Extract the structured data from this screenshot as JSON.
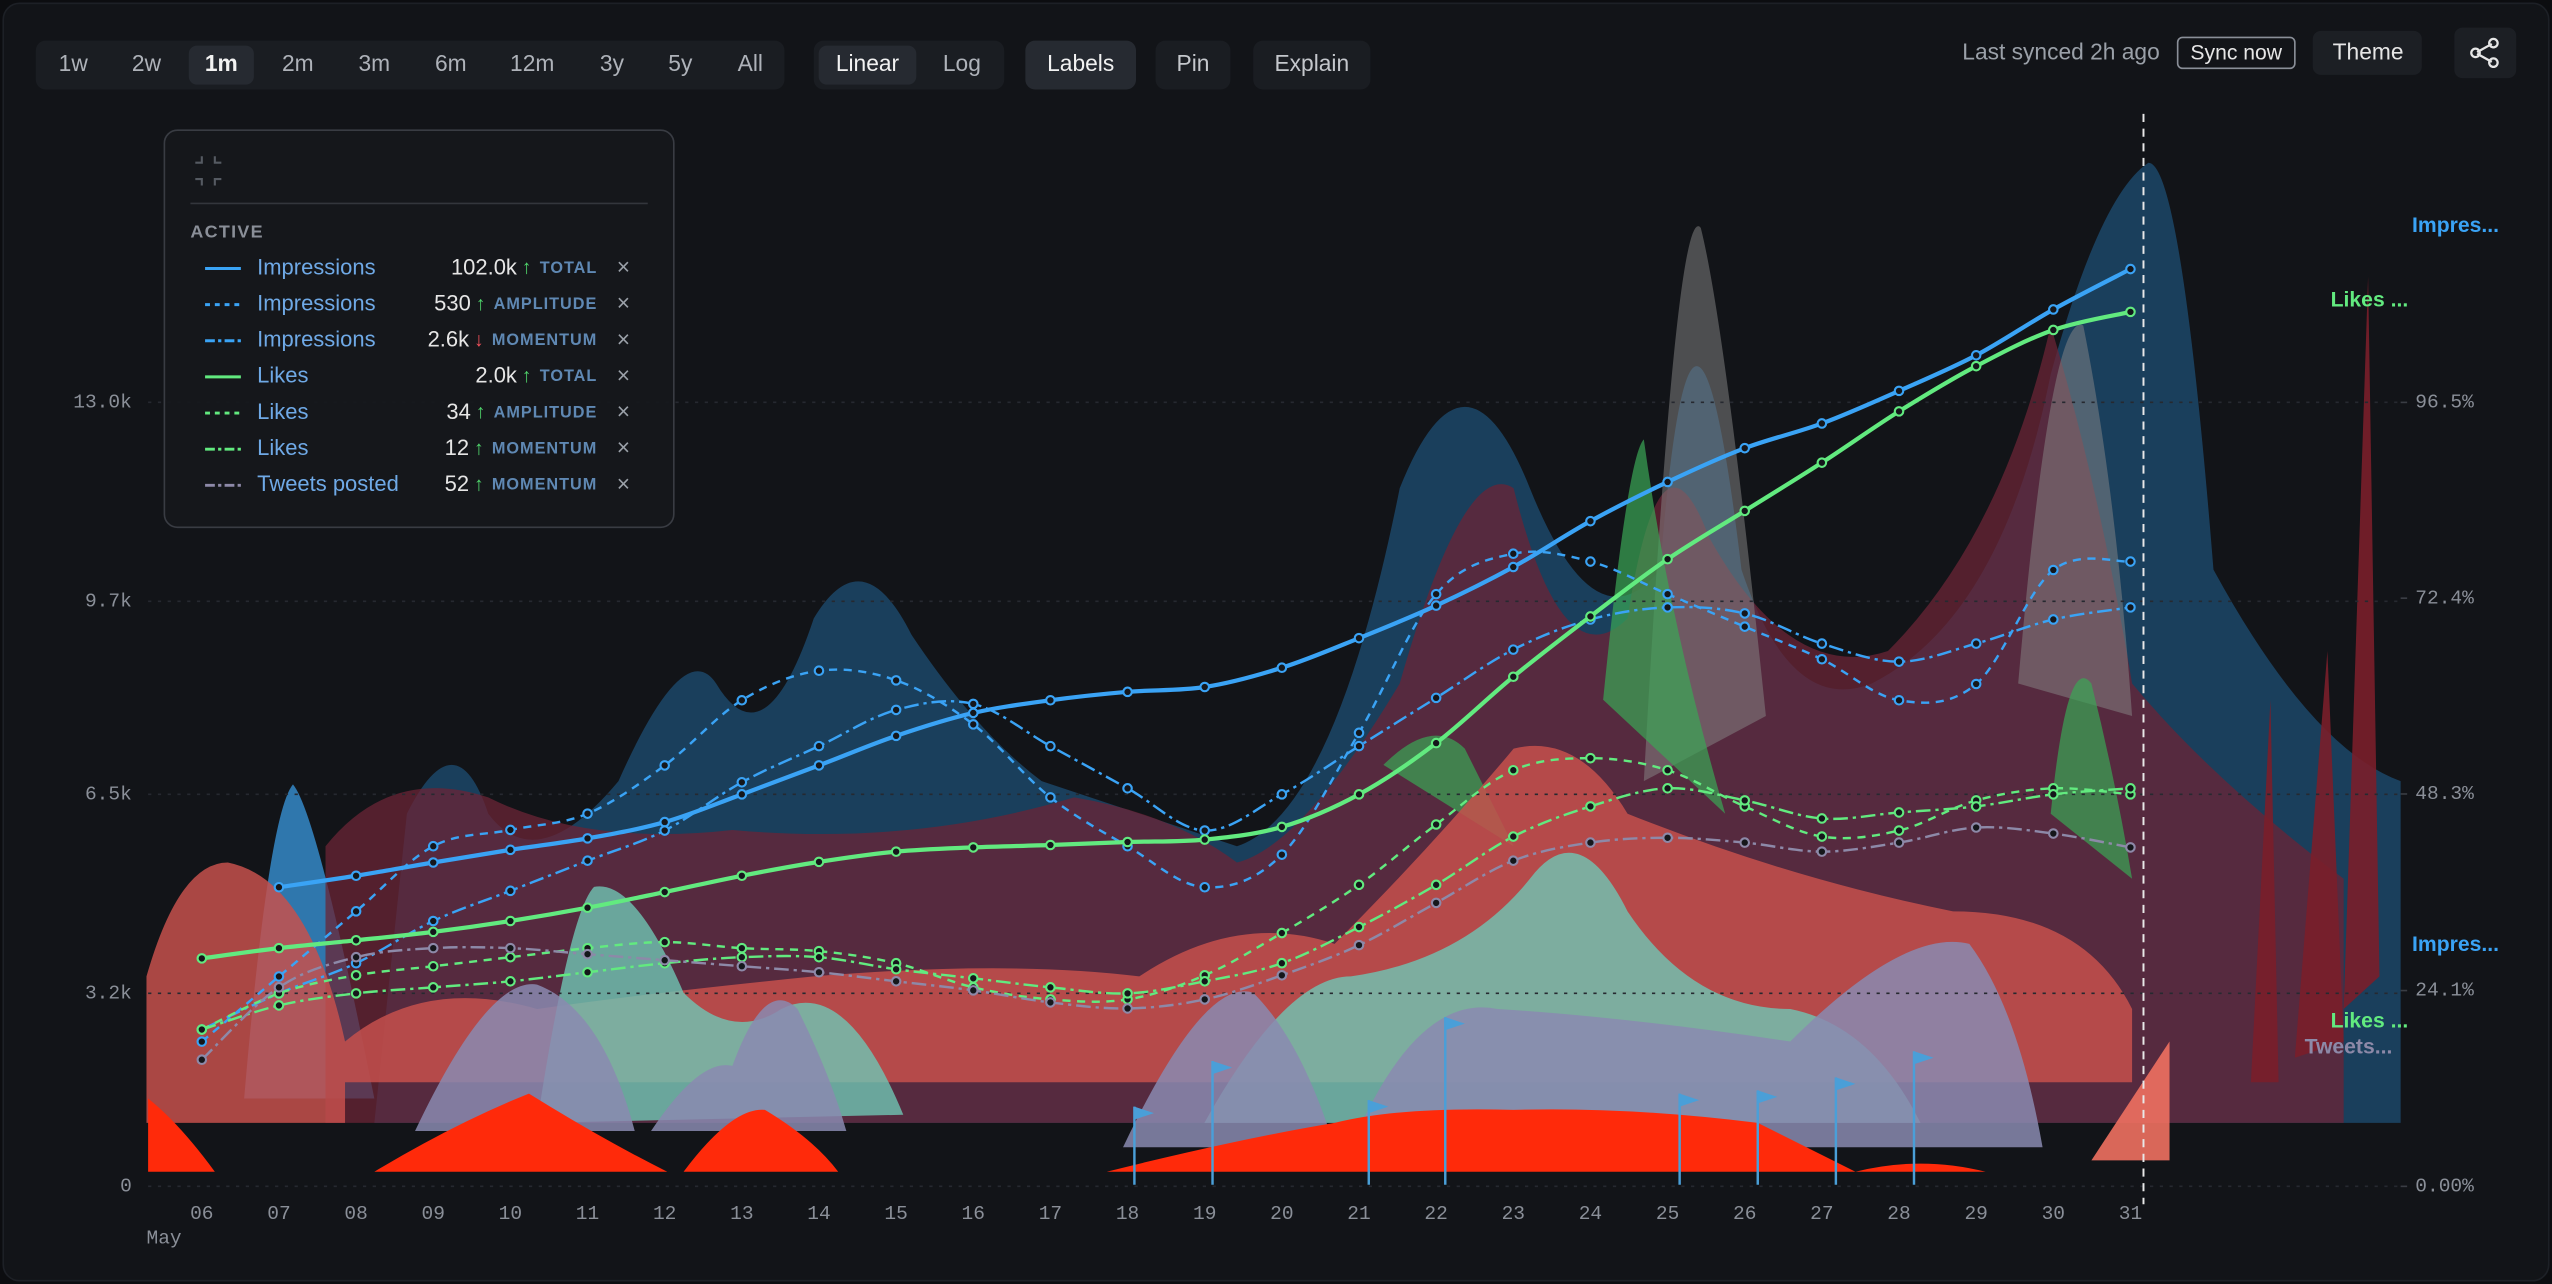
{
  "toolbar": {
    "ranges": [
      "1w",
      "2w",
      "1m",
      "2m",
      "3m",
      "6m",
      "12m",
      "3y",
      "5y",
      "All"
    ],
    "active_range": "1m",
    "scales": [
      "Linear",
      "Log"
    ],
    "active_scale": "Linear",
    "buttons": [
      "Labels",
      "Pin",
      "Explain"
    ],
    "active_button": "Labels",
    "status": "Last synced 2h ago",
    "sync": "Sync now",
    "theme": "Theme"
  },
  "legend": {
    "heading": "ACTIVE",
    "remove": "×"
  },
  "chart_data": {
    "type": "line",
    "categories": [
      "06",
      "07",
      "08",
      "09",
      "10",
      "11",
      "12",
      "13",
      "14",
      "15",
      "16",
      "17",
      "18",
      "19",
      "20",
      "21",
      "22",
      "23",
      "24",
      "25",
      "26",
      "27",
      "28",
      "29",
      "30",
      "31"
    ],
    "x_sublabel": "May",
    "ylim": [
      0,
      17000
    ],
    "yticks": [
      0,
      {
        "value": 3200,
        "label": "3.2k"
      },
      {
        "value": 6500,
        "label": "6.5k"
      },
      {
        "value": 9700,
        "label": "9.7k"
      },
      {
        "value": 13000,
        "label": "13.0k"
      }
    ],
    "y2lim": [
      0,
      126.2
    ],
    "y2ticks": [
      {
        "value": 0,
        "label": "0.00%"
      },
      {
        "value": 24.1,
        "label": "24.1%"
      },
      {
        "value": 48.3,
        "label": "48.3%"
      },
      {
        "value": 72.4,
        "label": "72.4%"
      },
      {
        "value": 96.5,
        "label": "96.5%"
      }
    ],
    "grid": true,
    "series": [
      {
        "name": "Impressions",
        "summary": "102.0k",
        "trend": "↑",
        "trend_color": "#4fd46b",
        "kind": "TOTAL",
        "color": "#3aa3f5",
        "dash": "solid",
        "end_label": "Impres...",
        "values": [
          null,
          4960,
          5150,
          5370,
          5580,
          5770,
          6040,
          6500,
          6980,
          7470,
          7850,
          8060,
          8200,
          8280,
          8600,
          9090,
          9630,
          10270,
          11030,
          11680,
          12240,
          12650,
          13190,
          13780,
          14540,
          15210
        ]
      },
      {
        "name": "Impressions",
        "summary": "530",
        "trend": "↑",
        "trend_color": "#4fd46b",
        "kind": "AMPLITUDE",
        "color": "#3aa3f5",
        "dash": "dashed",
        "end_label": "Impres...",
        "values": [
          2400,
          3480,
          4560,
          5640,
          5910,
          6180,
          6980,
          8060,
          8550,
          8390,
          7660,
          6450,
          5640,
          4960,
          5500,
          7520,
          9820,
          10490,
          10360,
          9820,
          9280,
          8740,
          8060,
          8330,
          10220,
          10360
        ]
      },
      {
        "name": "Impressions",
        "summary": "2.6k",
        "trend": "↓",
        "trend_color": "#f0505a",
        "kind": "MOMENTUM",
        "color": "#3aa3f5",
        "dash": "dashdot",
        "values": [
          2600,
          3200,
          3700,
          4400,
          4900,
          5400,
          5900,
          6700,
          7300,
          7900,
          8000,
          7300,
          6600,
          5900,
          6500,
          7300,
          8100,
          8900,
          9400,
          9600,
          9500,
          9000,
          8700,
          9000,
          9400,
          9600
        ]
      },
      {
        "name": "Likes",
        "summary": "2.0k",
        "trend": "↑",
        "trend_color": "#4fd46b",
        "kind": "TOTAL",
        "color": "#62ea7f",
        "dash": "solid",
        "end_label": "Likes ...",
        "values": [
          3780,
          3950,
          4080,
          4220,
          4400,
          4620,
          4880,
          5150,
          5380,
          5550,
          5620,
          5660,
          5710,
          5750,
          5960,
          6500,
          7350,
          8450,
          9450,
          10400,
          11200,
          12000,
          12850,
          13600,
          14200,
          14500
        ]
      },
      {
        "name": "Likes",
        "summary": "34",
        "trend": "↑",
        "trend_color": "#4fd46b",
        "kind": "AMPLITUDE",
        "color": "#62ea7f",
        "dash": "dashed",
        "end_label": "Likes ...",
        "values": [
          2600,
          3200,
          3500,
          3650,
          3800,
          3950,
          4050,
          3950,
          3900,
          3700,
          3300,
          3100,
          3100,
          3500,
          4200,
          5000,
          6000,
          6900,
          7100,
          6900,
          6300,
          5800,
          5900,
          6400,
          6600,
          6500
        ]
      },
      {
        "name": "Likes",
        "summary": "12",
        "trend": "↑",
        "trend_color": "#4fd46b",
        "kind": "MOMENTUM",
        "color": "#62ea7f",
        "dash": "dashdot",
        "values": [
          2600,
          3000,
          3200,
          3300,
          3400,
          3550,
          3700,
          3800,
          3800,
          3600,
          3450,
          3300,
          3200,
          3400,
          3700,
          4300,
          5000,
          5800,
          6300,
          6600,
          6400,
          6100,
          6200,
          6300,
          6500,
          6600
        ]
      },
      {
        "name": "Tweets posted",
        "summary": "52",
        "trend": "↑",
        "trend_color": "#4fd46b",
        "kind": "MOMENTUM",
        "color": "#8d89a8",
        "dash": "dashdot",
        "end_label": "Tweets...",
        "values": [
          2100,
          3300,
          3800,
          3950,
          3950,
          3850,
          3750,
          3650,
          3550,
          3400,
          3250,
          3050,
          2950,
          3100,
          3500,
          4000,
          4700,
          5400,
          5700,
          5780,
          5700,
          5550,
          5700,
          5950,
          5850,
          5620
        ]
      }
    ]
  }
}
